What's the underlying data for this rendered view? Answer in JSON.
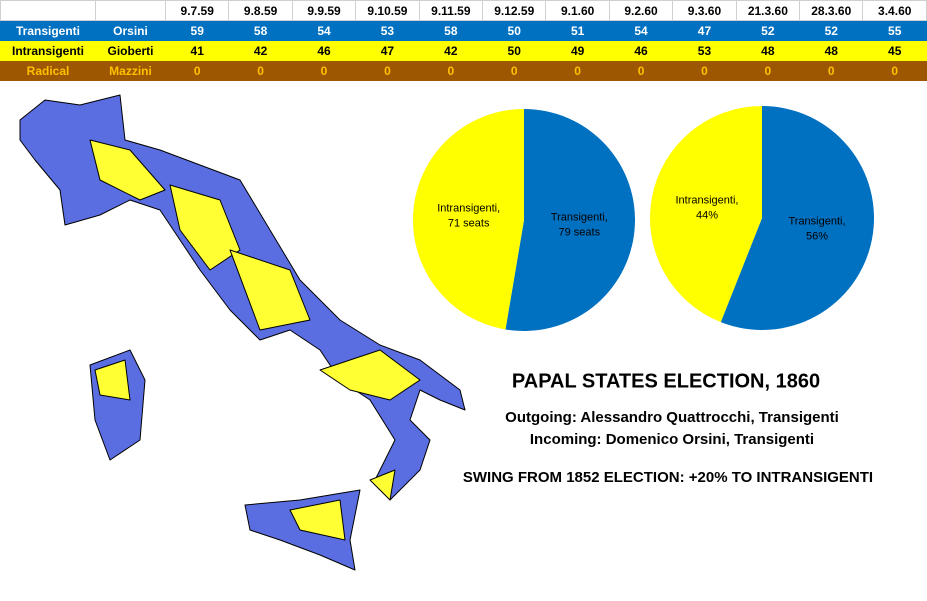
{
  "table": {
    "columns": [
      "9.7.59",
      "9.8.59",
      "9.9.59",
      "9.10.59",
      "9.11.59",
      "9.12.59",
      "9.1.60",
      "9.2.60",
      "9.3.60",
      "21.3.60",
      "28.3.60",
      "3.4.60"
    ],
    "rows": [
      {
        "party": "Transigenti",
        "leader": "Orsini",
        "values": [
          59,
          58,
          54,
          53,
          58,
          50,
          51,
          54,
          47,
          52,
          52,
          55
        ]
      },
      {
        "party": "Intransigenti",
        "leader": "Gioberti",
        "values": [
          41,
          42,
          46,
          47,
          42,
          50,
          49,
          46,
          53,
          48,
          48,
          45
        ]
      },
      {
        "party": "Radical",
        "leader": "Mazzini",
        "values": [
          0,
          0,
          0,
          0,
          0,
          0,
          0,
          0,
          0,
          0,
          0,
          0
        ]
      }
    ]
  },
  "chart_data": [
    {
      "type": "pie",
      "categories": [
        "Transigenti,",
        "Intransigenti,"
      ],
      "values": [
        79,
        71
      ],
      "value_labels": [
        "79 seats",
        "71 seats"
      ],
      "colors": [
        "#0070c0",
        "#ffff00"
      ]
    },
    {
      "type": "pie",
      "categories": [
        "Transigenti,",
        "Intransigenti,"
      ],
      "values": [
        56,
        44
      ],
      "value_labels": [
        "56%",
        "44%"
      ],
      "colors": [
        "#0070c0",
        "#ffff00"
      ]
    }
  ],
  "text": {
    "title": "PAPAL STATES ELECTION, 1860",
    "outgoing": "Outgoing: Alessandro Quattrocchi, Transigenti",
    "incoming": "Incoming: Domenico Orsini, Transigenti",
    "swing": "SWING FROM 1852 ELECTION: +20% TO INTRANSIGENTI"
  }
}
